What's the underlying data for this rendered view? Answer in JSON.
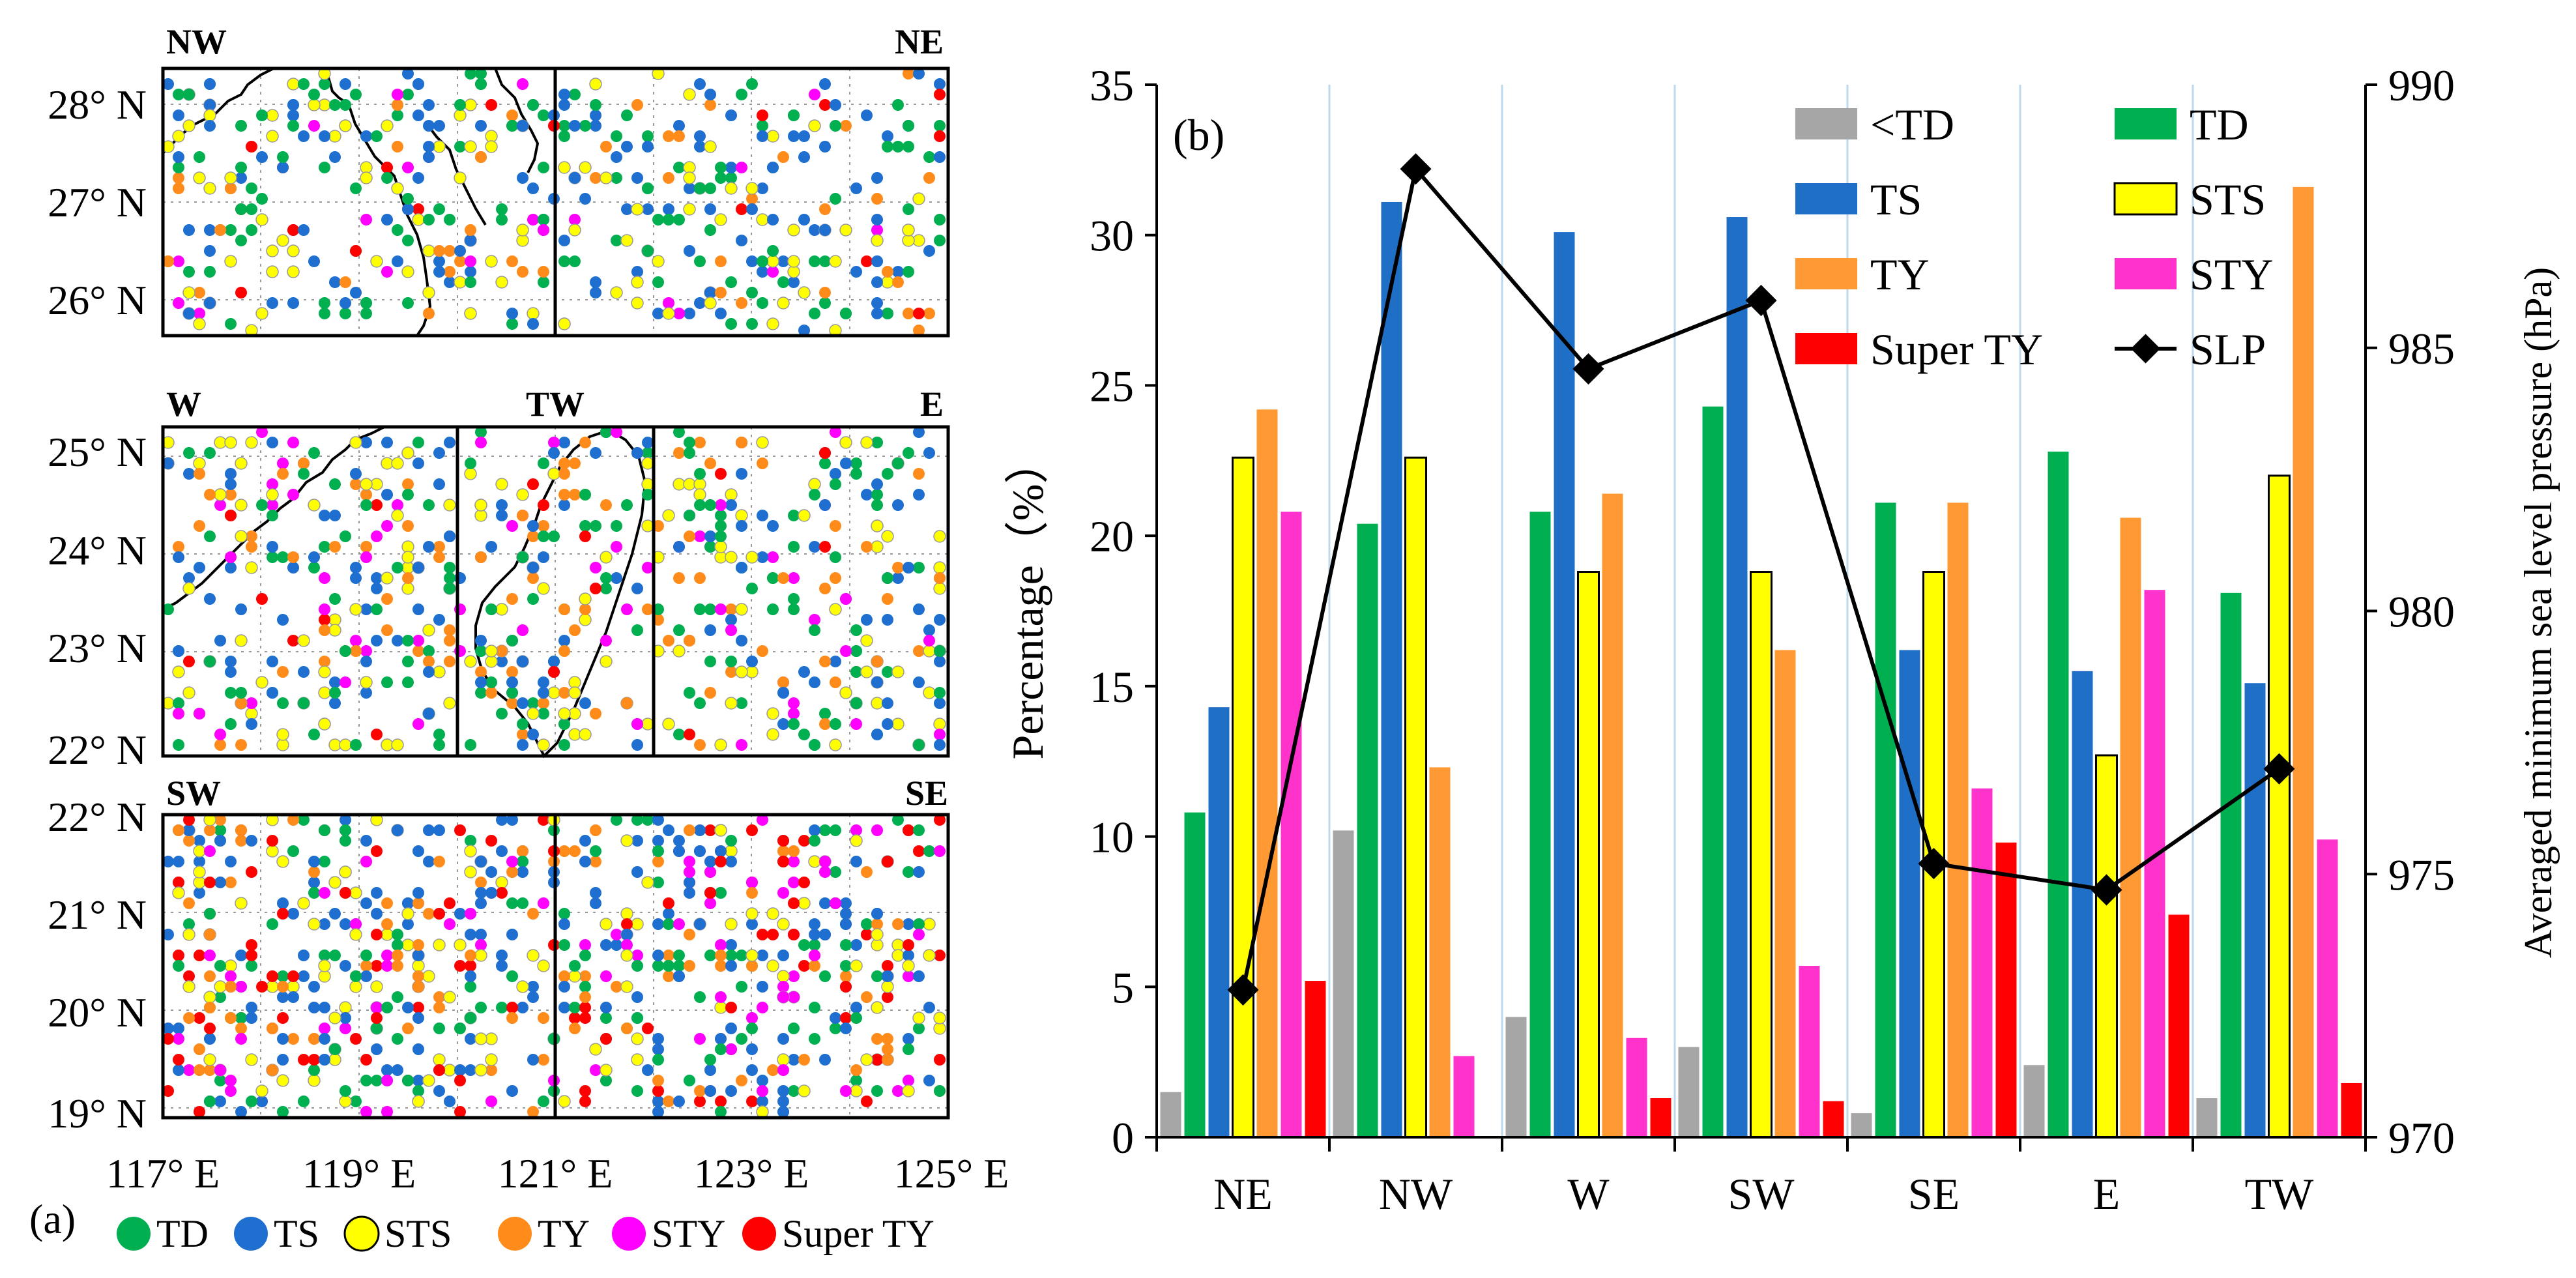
{
  "panel_a": {
    "label": "(a)",
    "lat_ticks": [
      "19° N",
      "20° N",
      "21° N",
      "22° N",
      "23° N",
      "24° N",
      "25° N",
      "26° N",
      "27° N",
      "28° N"
    ],
    "lon_ticks": [
      "117° E",
      "119° E",
      "121° E",
      "123° E",
      "125° E"
    ],
    "region_labels": {
      "NW": "NW",
      "NE": "NE",
      "W": "W",
      "TW": "TW",
      "E": "E",
      "SW": "SW",
      "SE": "SE"
    },
    "legend": [
      {
        "label": "TD",
        "color": "#00b050"
      },
      {
        "label": "TS",
        "color": "#1f6fd1"
      },
      {
        "label": "STS",
        "color": "#ffff00"
      },
      {
        "label": "TY",
        "color": "#ff8c1a"
      },
      {
        "label": "STY",
        "color": "#ff00ff"
      },
      {
        "label": "Super TY",
        "color": "#ff0000"
      }
    ]
  },
  "chart_data": {
    "type": "bar",
    "label": "(b)",
    "categories": [
      "NE",
      "NW",
      "W",
      "SW",
      "SE",
      "E",
      "TW"
    ],
    "ylabel": "Percentage（%）",
    "y2label": "Averaged  minimum sea level pressure  (hPa)",
    "ylim": [
      0,
      35
    ],
    "yticks": [
      "0",
      "5",
      "10",
      "15",
      "20",
      "25",
      "30",
      "35"
    ],
    "y2lim": [
      970,
      990
    ],
    "y2ticks": [
      "970",
      "975",
      "980",
      "985",
      "990"
    ],
    "series": [
      {
        "name": "<TD",
        "color": "#a6a6a6",
        "values": [
          1.5,
          10.2,
          4.0,
          3.0,
          0.8,
          2.4,
          1.3
        ]
      },
      {
        "name": "TD",
        "color": "#00b050",
        "values": [
          10.8,
          20.4,
          20.8,
          24.3,
          21.1,
          22.8,
          18.1
        ]
      },
      {
        "name": "TS",
        "color": "#1f6fc6",
        "values": [
          14.3,
          31.1,
          30.1,
          30.6,
          16.2,
          15.5,
          15.1
        ]
      },
      {
        "name": "STS",
        "color": "#ffff00",
        "values": [
          22.6,
          22.6,
          18.8,
          18.8,
          18.8,
          12.7,
          22.0
        ]
      },
      {
        "name": "TY",
        "color": "#ff9933",
        "values": [
          24.2,
          12.3,
          21.4,
          16.2,
          21.1,
          20.6,
          31.6
        ]
      },
      {
        "name": "STY",
        "color": "#ff33cc",
        "values": [
          20.8,
          2.7,
          3.3,
          5.7,
          11.6,
          18.2,
          9.9
        ]
      },
      {
        "name": "Super TY",
        "color": "#ff0000",
        "values": [
          5.2,
          0.0,
          1.3,
          1.2,
          9.8,
          7.4,
          1.8
        ]
      }
    ],
    "line": {
      "name": "SLP",
      "color": "#000000",
      "values": [
        972.8,
        988.4,
        984.6,
        985.9,
        975.2,
        974.7,
        977.0
      ]
    }
  }
}
